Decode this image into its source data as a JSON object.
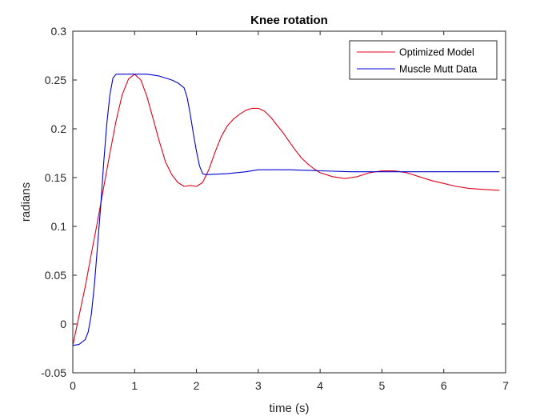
{
  "chart_data": {
    "type": "line",
    "title": "Knee rotation",
    "xlabel": "time (s)",
    "ylabel": "radians",
    "xlim": [
      0,
      7
    ],
    "ylim": [
      -0.05,
      0.3
    ],
    "xticks": [
      0,
      1,
      2,
      3,
      4,
      5,
      6,
      7
    ],
    "yticks": [
      -0.05,
      0,
      0.05,
      0.1,
      0.15,
      0.2,
      0.25,
      0.3
    ],
    "xtick_labels": [
      "0",
      "1",
      "2",
      "3",
      "4",
      "5",
      "6",
      "7"
    ],
    "ytick_labels": [
      "-0.05",
      "0",
      "0.05",
      "0.1",
      "0.15",
      "0.2",
      "0.25",
      "0.3"
    ],
    "grid": false,
    "legend_position": "top-right",
    "series": [
      {
        "name": "Optimized Model",
        "color": "#e0001b",
        "x": [
          0,
          0.1,
          0.2,
          0.3,
          0.4,
          0.5,
          0.6,
          0.7,
          0.8,
          0.9,
          1.0,
          1.1,
          1.2,
          1.3,
          1.4,
          1.5,
          1.6,
          1.7,
          1.8,
          1.9,
          2.0,
          2.1,
          2.2,
          2.3,
          2.4,
          2.5,
          2.6,
          2.7,
          2.8,
          2.9,
          3.0,
          3.1,
          3.2,
          3.3,
          3.4,
          3.5,
          3.6,
          3.7,
          3.8,
          3.9,
          4.0,
          4.2,
          4.4,
          4.6,
          4.8,
          5.0,
          5.2,
          5.4,
          5.6,
          5.8,
          6.0,
          6.2,
          6.4,
          6.6,
          6.9
        ],
        "y": [
          -0.022,
          0.008,
          0.038,
          0.072,
          0.105,
          0.14,
          0.175,
          0.208,
          0.235,
          0.251,
          0.256,
          0.25,
          0.233,
          0.21,
          0.187,
          0.166,
          0.153,
          0.145,
          0.141,
          0.142,
          0.141,
          0.145,
          0.158,
          0.176,
          0.192,
          0.203,
          0.21,
          0.215,
          0.219,
          0.221,
          0.221,
          0.218,
          0.212,
          0.204,
          0.196,
          0.187,
          0.178,
          0.17,
          0.164,
          0.159,
          0.155,
          0.151,
          0.149,
          0.151,
          0.155,
          0.157,
          0.157,
          0.155,
          0.151,
          0.147,
          0.144,
          0.141,
          0.139,
          0.138,
          0.137
        ]
      },
      {
        "name": "Muscle Mutt Data",
        "color": "#0000d0",
        "x": [
          0,
          0.1,
          0.2,
          0.25,
          0.3,
          0.35,
          0.4,
          0.45,
          0.5,
          0.55,
          0.6,
          0.65,
          0.7,
          0.8,
          1.0,
          1.2,
          1.4,
          1.6,
          1.7,
          1.8,
          1.85,
          1.9,
          1.95,
          2.0,
          2.05,
          2.1,
          2.15,
          2.5,
          2.8,
          3.0,
          3.5,
          4.0,
          4.5,
          5.0,
          5.5,
          6.0,
          6.5,
          6.9
        ],
        "y": [
          -0.022,
          -0.021,
          -0.016,
          -0.008,
          0.01,
          0.04,
          0.08,
          0.12,
          0.165,
          0.205,
          0.235,
          0.252,
          0.256,
          0.256,
          0.256,
          0.256,
          0.254,
          0.25,
          0.247,
          0.242,
          0.232,
          0.215,
          0.195,
          0.177,
          0.162,
          0.154,
          0.153,
          0.154,
          0.156,
          0.158,
          0.158,
          0.157,
          0.156,
          0.156,
          0.156,
          0.156,
          0.156,
          0.156
        ]
      }
    ]
  }
}
